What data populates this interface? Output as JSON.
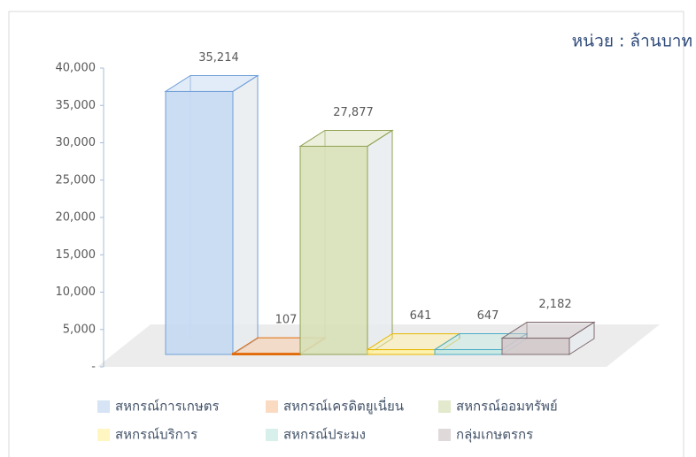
{
  "chart_data": {
    "type": "bar3d",
    "annotation": "หน่วย : ล้านบาท",
    "ylim": [
      0,
      40000
    ],
    "yticks": [
      {
        "value": 0,
        "label": "-"
      },
      {
        "value": 5000,
        "label": "5,000"
      },
      {
        "value": 10000,
        "label": "10,000"
      },
      {
        "value": 15000,
        "label": "15,000"
      },
      {
        "value": 20000,
        "label": "20,000"
      },
      {
        "value": 25000,
        "label": "25,000"
      },
      {
        "value": 30000,
        "label": "30,000"
      },
      {
        "value": 35000,
        "label": "35,000"
      },
      {
        "value": 40000,
        "label": "40,000"
      }
    ],
    "series": [
      {
        "name": "สหกรณ์การเกษตร",
        "color": "#c5d9f1",
        "values": [
          35214
        ],
        "value_labels": [
          "35,214"
        ]
      },
      {
        "name": "สหกรณ์เครดิตยูเนี่ยน",
        "color": "#f8cba6",
        "values": [
          107
        ],
        "value_labels": [
          "107"
        ]
      },
      {
        "name": "สหกรณ์ออมทรัพย์",
        "color": "#d7e0b8",
        "values": [
          27877
        ],
        "value_labels": [
          "27,877"
        ]
      },
      {
        "name": "สหกรณ์บริการ",
        "color": "#fff2a8",
        "values": [
          641
        ],
        "value_labels": [
          "641"
        ]
      },
      {
        "name": "สหกรณ์ประมง",
        "color": "#c6e9e2",
        "values": [
          647
        ],
        "value_labels": [
          "647"
        ]
      },
      {
        "name": "กลุ่มเกษตรกร",
        "color": "#d3c9cb",
        "values": [
          2182
        ],
        "value_labels": [
          "2,182"
        ]
      }
    ]
  }
}
